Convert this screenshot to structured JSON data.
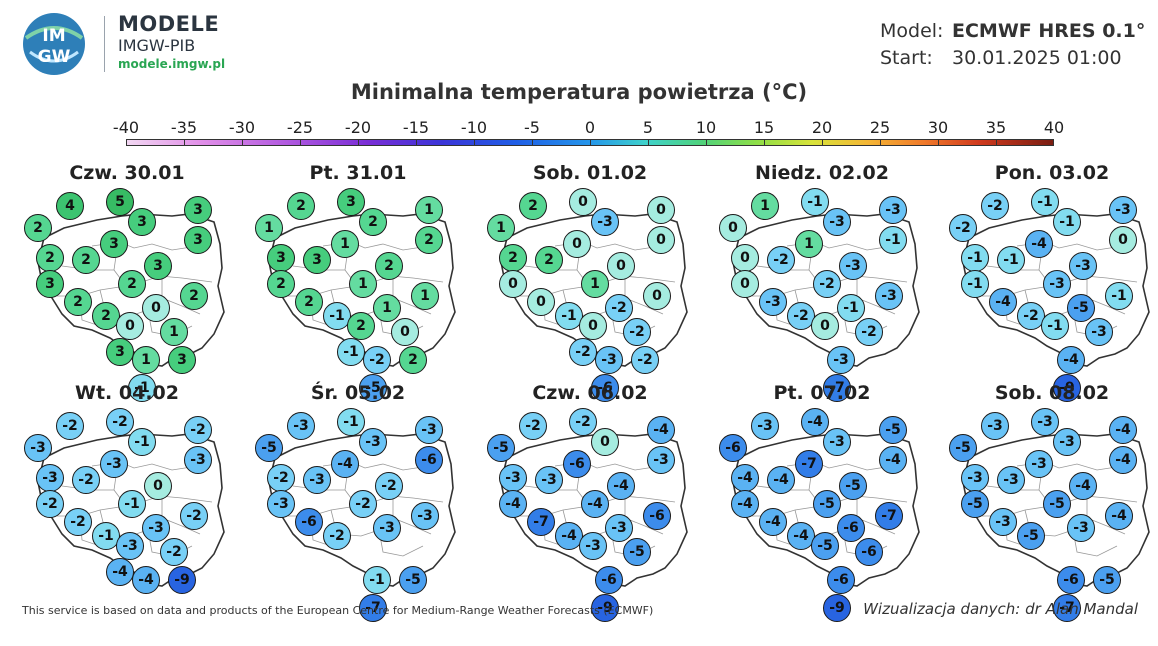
{
  "brand": {
    "title": "MODELE",
    "subtitle": "IMGW-PIB",
    "url": "modele.imgw.pl",
    "logo_text": [
      "IM",
      "GW"
    ]
  },
  "model": {
    "model_key": "Model:",
    "model_value": "ECMWF HRES 0.1°",
    "start_key": "Start:",
    "start_value": "30.01.2025 01:00"
  },
  "title": "Minimalna temperatura powietrza (°C)",
  "scale": {
    "ticks": [
      "-40",
      "-35",
      "-30",
      "-25",
      "-20",
      "-15",
      "-10",
      "-5",
      "0",
      "5",
      "10",
      "15",
      "20",
      "25",
      "30",
      "35",
      "40"
    ],
    "min": -40,
    "max": 40
  },
  "days": [
    {
      "label": "Czw. 30.01",
      "values": [
        4,
        5,
        2,
        3,
        3,
        3,
        3,
        2,
        2,
        3,
        3,
        2,
        2,
        2,
        0,
        2,
        0,
        1,
        3,
        1,
        3,
        -1
      ]
    },
    {
      "label": "Pt. 31.01",
      "values": [
        2,
        3,
        1,
        2,
        1,
        2,
        1,
        3,
        3,
        2,
        2,
        1,
        1,
        2,
        1,
        -1,
        2,
        0,
        -1,
        -2,
        2,
        -5
      ]
    },
    {
      "label": "Sob. 01.02",
      "values": [
        2,
        0,
        1,
        -3,
        0,
        0,
        0,
        2,
        2,
        0,
        0,
        1,
        0,
        0,
        -2,
        -1,
        0,
        -2,
        -2,
        -3,
        -2,
        -6
      ]
    },
    {
      "label": "Niedz. 02.02",
      "values": [
        1,
        -1,
        0,
        -3,
        -3,
        -1,
        1,
        0,
        -2,
        -3,
        0,
        -2,
        -3,
        -3,
        -1,
        -2,
        0,
        -2,
        -3,
        -7
      ]
    },
    {
      "label": "Pon. 03.02",
      "values": [
        -2,
        -1,
        -2,
        -1,
        -3,
        0,
        -4,
        -1,
        -1,
        -3,
        -1,
        -3,
        -1,
        -4,
        -5,
        -2,
        -1,
        -3,
        -4,
        -9
      ]
    },
    {
      "label": "Wt. 04.02",
      "values": [
        -2,
        -2,
        -3,
        -1,
        -2,
        -3,
        -3,
        -3,
        -2,
        0,
        -2,
        -1,
        -2,
        -2,
        -3,
        -1,
        -3,
        -2,
        -4,
        -4,
        -9
      ]
    },
    {
      "label": "Śr. 05.02",
      "values": [
        -3,
        -1,
        -5,
        -3,
        -3,
        -6,
        -4,
        -2,
        -3,
        -2,
        -3,
        -2,
        -3,
        -6,
        -3,
        -2,
        -1,
        -5,
        -7
      ]
    },
    {
      "label": "Czw. 06.02",
      "values": [
        -2,
        -2,
        -5,
        0,
        -4,
        -3,
        -6,
        -3,
        -3,
        -4,
        -4,
        -4,
        -6,
        -7,
        -3,
        -4,
        -3,
        -5,
        -6,
        -9
      ]
    },
    {
      "label": "Pt. 07.02",
      "values": [
        -3,
        -4,
        -6,
        -3,
        -5,
        -4,
        -7,
        -4,
        -4,
        -5,
        -4,
        -5,
        -7,
        -4,
        -6,
        -4,
        -5,
        -6,
        -6,
        -9
      ]
    },
    {
      "label": "Sob. 08.02",
      "values": [
        -3,
        -3,
        -5,
        -3,
        -4,
        -4,
        -3,
        -3,
        -3,
        -4,
        -5,
        -5,
        -4,
        -3,
        -3,
        -5,
        -6,
        -5,
        -7
      ]
    }
  ],
  "footer": {
    "left": "This service is based on data and products of the European Centre for Medium-Range Weather Forecasts (ECMWF)",
    "right": "Wizualizacja danych: dr Alan Mandal"
  },
  "colors": {
    "brand_green": "#2aa653",
    "logo_blue": "#2e7fb8"
  }
}
